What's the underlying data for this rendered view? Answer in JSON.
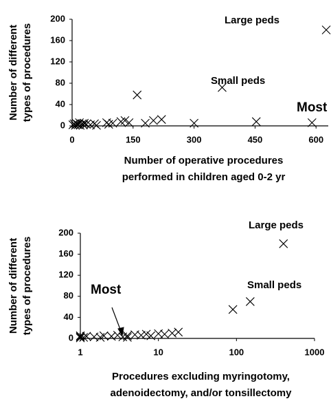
{
  "chart_data": [
    {
      "type": "scatter",
      "ylabel": [
        "Number of different",
        "types of procedures"
      ],
      "xlabel": [
        "Number of operative procedures",
        "performed in children aged 0-2 yr"
      ],
      "x": [
        2,
        5,
        8,
        10,
        12,
        15,
        18,
        20,
        25,
        28,
        30,
        35,
        45,
        55,
        60,
        85,
        90,
        100,
        120,
        130,
        140,
        180,
        200,
        220,
        160,
        300,
        369,
        453,
        590,
        625
      ],
      "values": [
        2,
        4,
        1,
        5,
        3,
        2,
        6,
        1,
        4,
        2,
        5,
        3,
        2,
        4,
        1,
        6,
        3,
        5,
        8,
        10,
        6,
        5,
        10,
        12,
        58,
        5,
        72,
        8,
        6,
        180
      ],
      "color": "#000000",
      "xlim": [
        0,
        630
      ],
      "xticks": [
        0,
        150,
        300,
        450,
        600
      ],
      "ylim": [
        0,
        200
      ],
      "yticks": [
        0,
        40,
        80,
        120,
        160,
        200
      ],
      "annotations": [
        "Large peds",
        "Small peds",
        "Most"
      ]
    },
    {
      "type": "scatter",
      "ylabel": [
        "Number of different",
        "types of procedures"
      ],
      "xlabel": [
        "Procedures excluding myringotomy,",
        "adenoidectomy, and/or tonsillectomy"
      ],
      "xscale": "log",
      "x": [
        1,
        1,
        1,
        1.1,
        1.2,
        1.5,
        1.8,
        2,
        2.5,
        3,
        3.5,
        4,
        4,
        5,
        6,
        7,
        8,
        10,
        12,
        15,
        18,
        90,
        150,
        400
      ],
      "values": [
        1,
        3,
        5,
        2,
        4,
        3,
        2,
        5,
        4,
        6,
        3,
        2,
        5,
        7,
        6,
        8,
        5,
        9,
        8,
        10,
        12,
        55,
        70,
        180
      ],
      "color": "#000000",
      "xlim": [
        1,
        1000
      ],
      "xticks": [
        1,
        10,
        100,
        1000
      ],
      "ylim": [
        0,
        200
      ],
      "yticks": [
        0,
        40,
        80,
        120,
        160,
        200
      ],
      "annotations": [
        "Large peds",
        "Small peds",
        "Most"
      ]
    }
  ]
}
